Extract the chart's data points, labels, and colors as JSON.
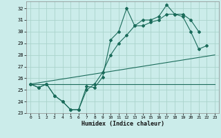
{
  "xlabel": "Humidex (Indice chaleur)",
  "xlim": [
    -0.5,
    23.5
  ],
  "ylim": [
    23,
    32.6
  ],
  "yticks": [
    23,
    24,
    25,
    26,
    27,
    28,
    29,
    30,
    31,
    32
  ],
  "xticks": [
    0,
    1,
    2,
    3,
    4,
    5,
    6,
    7,
    8,
    9,
    10,
    11,
    12,
    13,
    14,
    15,
    16,
    17,
    18,
    19,
    20,
    21,
    22,
    23
  ],
  "bg_color": "#cbecea",
  "grid_color": "#aad4cc",
  "line_color": "#1a6b5a",
  "curve1_x": [
    0,
    1,
    2,
    3,
    4,
    5,
    6,
    7,
    8,
    9,
    10,
    11,
    12,
    13,
    14,
    15,
    16,
    17,
    18,
    19,
    20,
    21,
    22
  ],
  "curve1_y": [
    25.5,
    25.2,
    25.5,
    24.5,
    24.0,
    23.3,
    23.3,
    25.3,
    25.2,
    26.1,
    29.3,
    30.0,
    32.0,
    30.5,
    31.0,
    31.0,
    31.3,
    32.3,
    31.5,
    31.3,
    30.0,
    28.5,
    28.8
  ],
  "curve2_x": [
    0,
    1,
    2,
    3,
    4,
    5,
    6,
    7,
    8,
    9,
    10,
    11,
    12,
    13,
    14,
    15,
    16,
    17,
    18,
    19,
    20,
    21
  ],
  "curve2_y": [
    25.5,
    25.2,
    25.5,
    24.5,
    24.0,
    23.3,
    23.3,
    25.0,
    25.5,
    26.5,
    28.0,
    29.0,
    29.7,
    30.5,
    30.5,
    30.8,
    31.0,
    31.5,
    31.5,
    31.5,
    31.0,
    30.0
  ],
  "ref_line1_x": [
    0,
    23
  ],
  "ref_line1_y": [
    25.5,
    28.0
  ],
  "ref_line2_x": [
    0,
    23
  ],
  "ref_line2_y": [
    25.5,
    25.5
  ]
}
